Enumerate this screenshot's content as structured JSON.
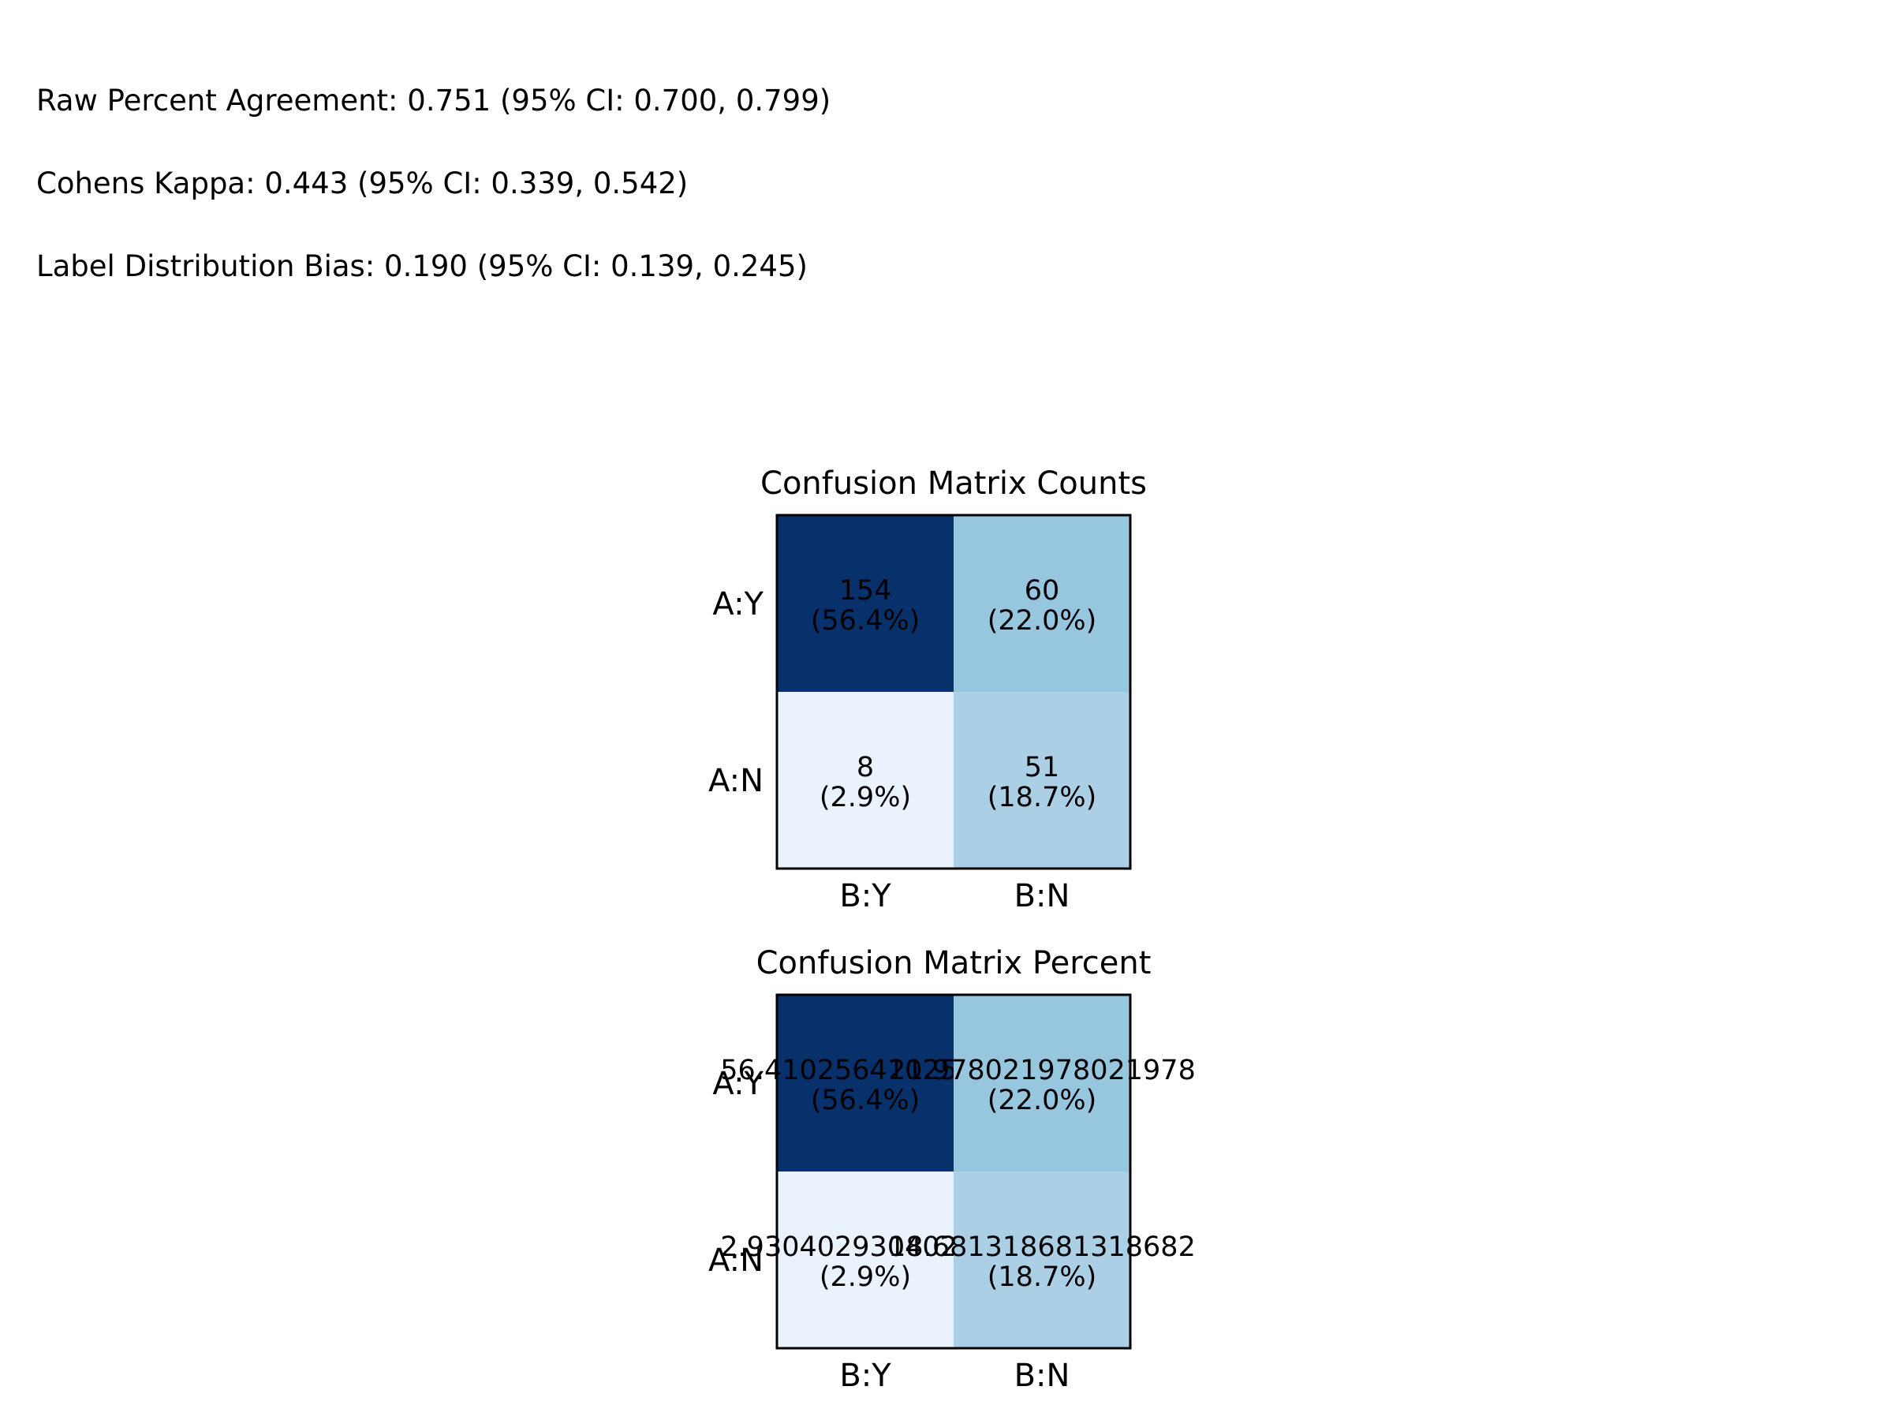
{
  "stats": [
    "Raw Percent Agreement: 0.751 (95% CI: 0.700, 0.799)",
    "Cohens Kappa: 0.443 (95% CI: 0.339, 0.542)",
    "Label Distribution Bias: 0.190 (95% CI: 0.139, 0.245)"
  ],
  "chart_data": [
    {
      "type": "heatmap",
      "title": "Confusion Matrix Counts",
      "row_labels": [
        "A:Y",
        "A:N"
      ],
      "col_labels": [
        "B:Y",
        "B:N"
      ],
      "values": [
        [
          154,
          60
        ],
        [
          8,
          51
        ]
      ],
      "cell_text": [
        [
          "154",
          "60"
        ],
        [
          "8",
          "51"
        ]
      ],
      "cell_percent_text": [
        [
          "(56.4%)",
          "(22.0%)"
        ],
        [
          "(2.9%)",
          "(18.7%)"
        ]
      ],
      "colormap": "Blues",
      "colors": [
        [
          "#08306b",
          "#97c6df"
        ],
        [
          "#eaf3fb",
          "#abd0e6"
        ]
      ]
    },
    {
      "type": "heatmap",
      "title": "Confusion Matrix Percent",
      "row_labels": [
        "A:Y",
        "A:N"
      ],
      "col_labels": [
        "B:Y",
        "B:N"
      ],
      "values": [
        [
          56.41025641025641,
          21.978021978021978
        ],
        [
          2.930402930402931,
          18.681318681318682
        ]
      ],
      "cell_text": [
        [
          "56.41025641025641",
          "21.978021978021978"
        ],
        [
          "2.930402930402931",
          "18.681318681318682"
        ]
      ],
      "cell_percent_text": [
        [
          "(56.4%)",
          "(22.0%)"
        ],
        [
          "(2.9%)",
          "(18.7%)"
        ]
      ],
      "colormap": "Blues",
      "colors": [
        [
          "#08306b",
          "#97c6df"
        ],
        [
          "#eaf3fb",
          "#abd0e6"
        ]
      ]
    }
  ]
}
